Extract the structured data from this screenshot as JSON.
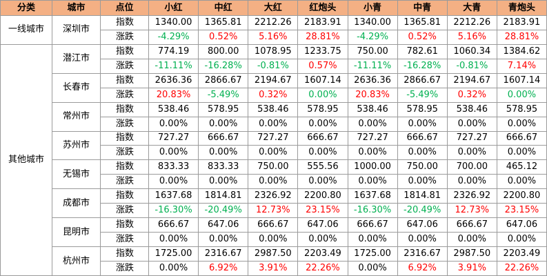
{
  "header": [
    "分类",
    "城市",
    "点位",
    "小红",
    "中红",
    "大红",
    "红炮头",
    "小青",
    "中青",
    "大青",
    "青炮头"
  ],
  "palette": {
    "red": "#ff0000",
    "green": "#00b050",
    "black": "#000000"
  },
  "groups": [
    {
      "category": "一线城市",
      "cities": [
        {
          "name": "深圳市",
          "rows": [
            {
              "label": "指数",
              "cells": [
                "1340.00",
                "1365.81",
                "2212.26",
                "2183.91",
                "1340.00",
                "1365.81",
                "2212.26",
                "2183.91"
              ]
            },
            {
              "label": "涨跌",
              "cells": [
                "-4.29%",
                "0.52%",
                "5.16%",
                "28.81%",
                "-4.29%",
                "0.52%",
                "5.16%",
                "28.81%"
              ],
              "colors": [
                "green",
                "red",
                "red",
                "red",
                "green",
                "red",
                "red",
                "red"
              ]
            }
          ]
        }
      ]
    },
    {
      "category": "其他城市",
      "cities": [
        {
          "name": "潜江市",
          "rows": [
            {
              "label": "指数",
              "cells": [
                "774.19",
                "800.00",
                "1078.95",
                "1233.75",
                "750.00",
                "782.61",
                "1060.34",
                "1384.62"
              ]
            },
            {
              "label": "涨跌",
              "cells": [
                "-11.11%",
                "-16.28%",
                "-0.81%",
                "0.57%",
                "-11.11%",
                "-16.28%",
                "-0.81%",
                "7.14%"
              ],
              "colors": [
                "green",
                "green",
                "green",
                "red",
                "green",
                "green",
                "green",
                "red"
              ]
            }
          ]
        },
        {
          "name": "长春市",
          "rows": [
            {
              "label": "指数",
              "cells": [
                "2636.36",
                "2866.67",
                "2194.67",
                "1607.14",
                "2636.36",
                "2866.67",
                "2194.67",
                "1607.14"
              ]
            },
            {
              "label": "涨跌",
              "cells": [
                "20.83%",
                "-5.49%",
                "0.32%",
                "0.00%",
                "20.83%",
                "-5.49%",
                "0.32%",
                "0.00%"
              ],
              "colors": [
                "red",
                "green",
                "red",
                "green",
                "red",
                "green",
                "red",
                "green"
              ]
            }
          ]
        },
        {
          "name": "常州市",
          "rows": [
            {
              "label": "指数",
              "cells": [
                "538.46",
                "578.95",
                "538.46",
                "578.95",
                "538.46",
                "578.95",
                "538.46",
                "578.95"
              ]
            },
            {
              "label": "涨跌",
              "cells": [
                "0.00%",
                "0.00%",
                "0.00%",
                "0.00%",
                "0.00%",
                "0.00%",
                "0.00%",
                "0.00%"
              ],
              "colors": [
                "black",
                "black",
                "black",
                "black",
                "black",
                "black",
                "black",
                "black"
              ]
            }
          ]
        },
        {
          "name": "苏州市",
          "rows": [
            {
              "label": "指数",
              "cells": [
                "727.27",
                "666.67",
                "727.27",
                "666.67",
                "727.27",
                "666.67",
                "727.27",
                "666.67"
              ]
            },
            {
              "label": "涨跌",
              "cells": [
                "0.00%",
                "0.00%",
                "0.00%",
                "0.00%",
                "0.00%",
                "0.00%",
                "0.00%",
                "0.00%"
              ],
              "colors": [
                "black",
                "black",
                "black",
                "black",
                "black",
                "black",
                "black",
                "black"
              ]
            }
          ]
        },
        {
          "name": "无锡市",
          "rows": [
            {
              "label": "指数",
              "cells": [
                "833.33",
                "833.33",
                "750.00",
                "555.56",
                "1000.00",
                "750.00",
                "700.00",
                "465.12"
              ]
            },
            {
              "label": "涨跌",
              "cells": [
                "0.00%",
                "0.00%",
                "0.00%",
                "0.00%",
                "0.00%",
                "0.00%",
                "0.00%",
                "0.00%"
              ],
              "colors": [
                "black",
                "black",
                "black",
                "black",
                "black",
                "black",
                "black",
                "black"
              ]
            }
          ]
        },
        {
          "name": "成都市",
          "rows": [
            {
              "label": "指数",
              "cells": [
                "1637.68",
                "1814.81",
                "2326.92",
                "2200.80",
                "1637.68",
                "1814.81",
                "2326.92",
                "2200.80"
              ]
            },
            {
              "label": "涨跌",
              "cells": [
                "-16.30%",
                "-20.49%",
                "12.73%",
                "23.15%",
                "-16.30%",
                "-20.49%",
                "12.73%",
                "23.15%"
              ],
              "colors": [
                "green",
                "green",
                "red",
                "red",
                "green",
                "green",
                "red",
                "red"
              ]
            }
          ]
        },
        {
          "name": "昆明市",
          "rows": [
            {
              "label": "指数",
              "cells": [
                "666.67",
                "647.06",
                "666.67",
                "647.06",
                "666.67",
                "647.06",
                "666.67",
                "647.06"
              ]
            },
            {
              "label": "涨跌",
              "cells": [
                "0.00%",
                "0.00%",
                "0.00%",
                "0.00%",
                "0.00%",
                "0.00%",
                "0.00%",
                "0.00%"
              ],
              "colors": [
                "black",
                "black",
                "black",
                "black",
                "black",
                "black",
                "black",
                "black"
              ]
            }
          ]
        },
        {
          "name": "杭州市",
          "rows": [
            {
              "label": "指数",
              "cells": [
                "1725.00",
                "2316.67",
                "2987.50",
                "2203.49",
                "1725.00",
                "2316.67",
                "2987.50",
                "2203.49"
              ]
            },
            {
              "label": "涨跌",
              "cells": [
                "0.00%",
                "6.92%",
                "3.91%",
                "22.26%",
                "0.00%",
                "6.92%",
                "3.91%",
                "22.26%"
              ],
              "colors": [
                "black",
                "red",
                "red",
                "red",
                "black",
                "red",
                "red",
                "red"
              ]
            }
          ]
        }
      ]
    }
  ]
}
